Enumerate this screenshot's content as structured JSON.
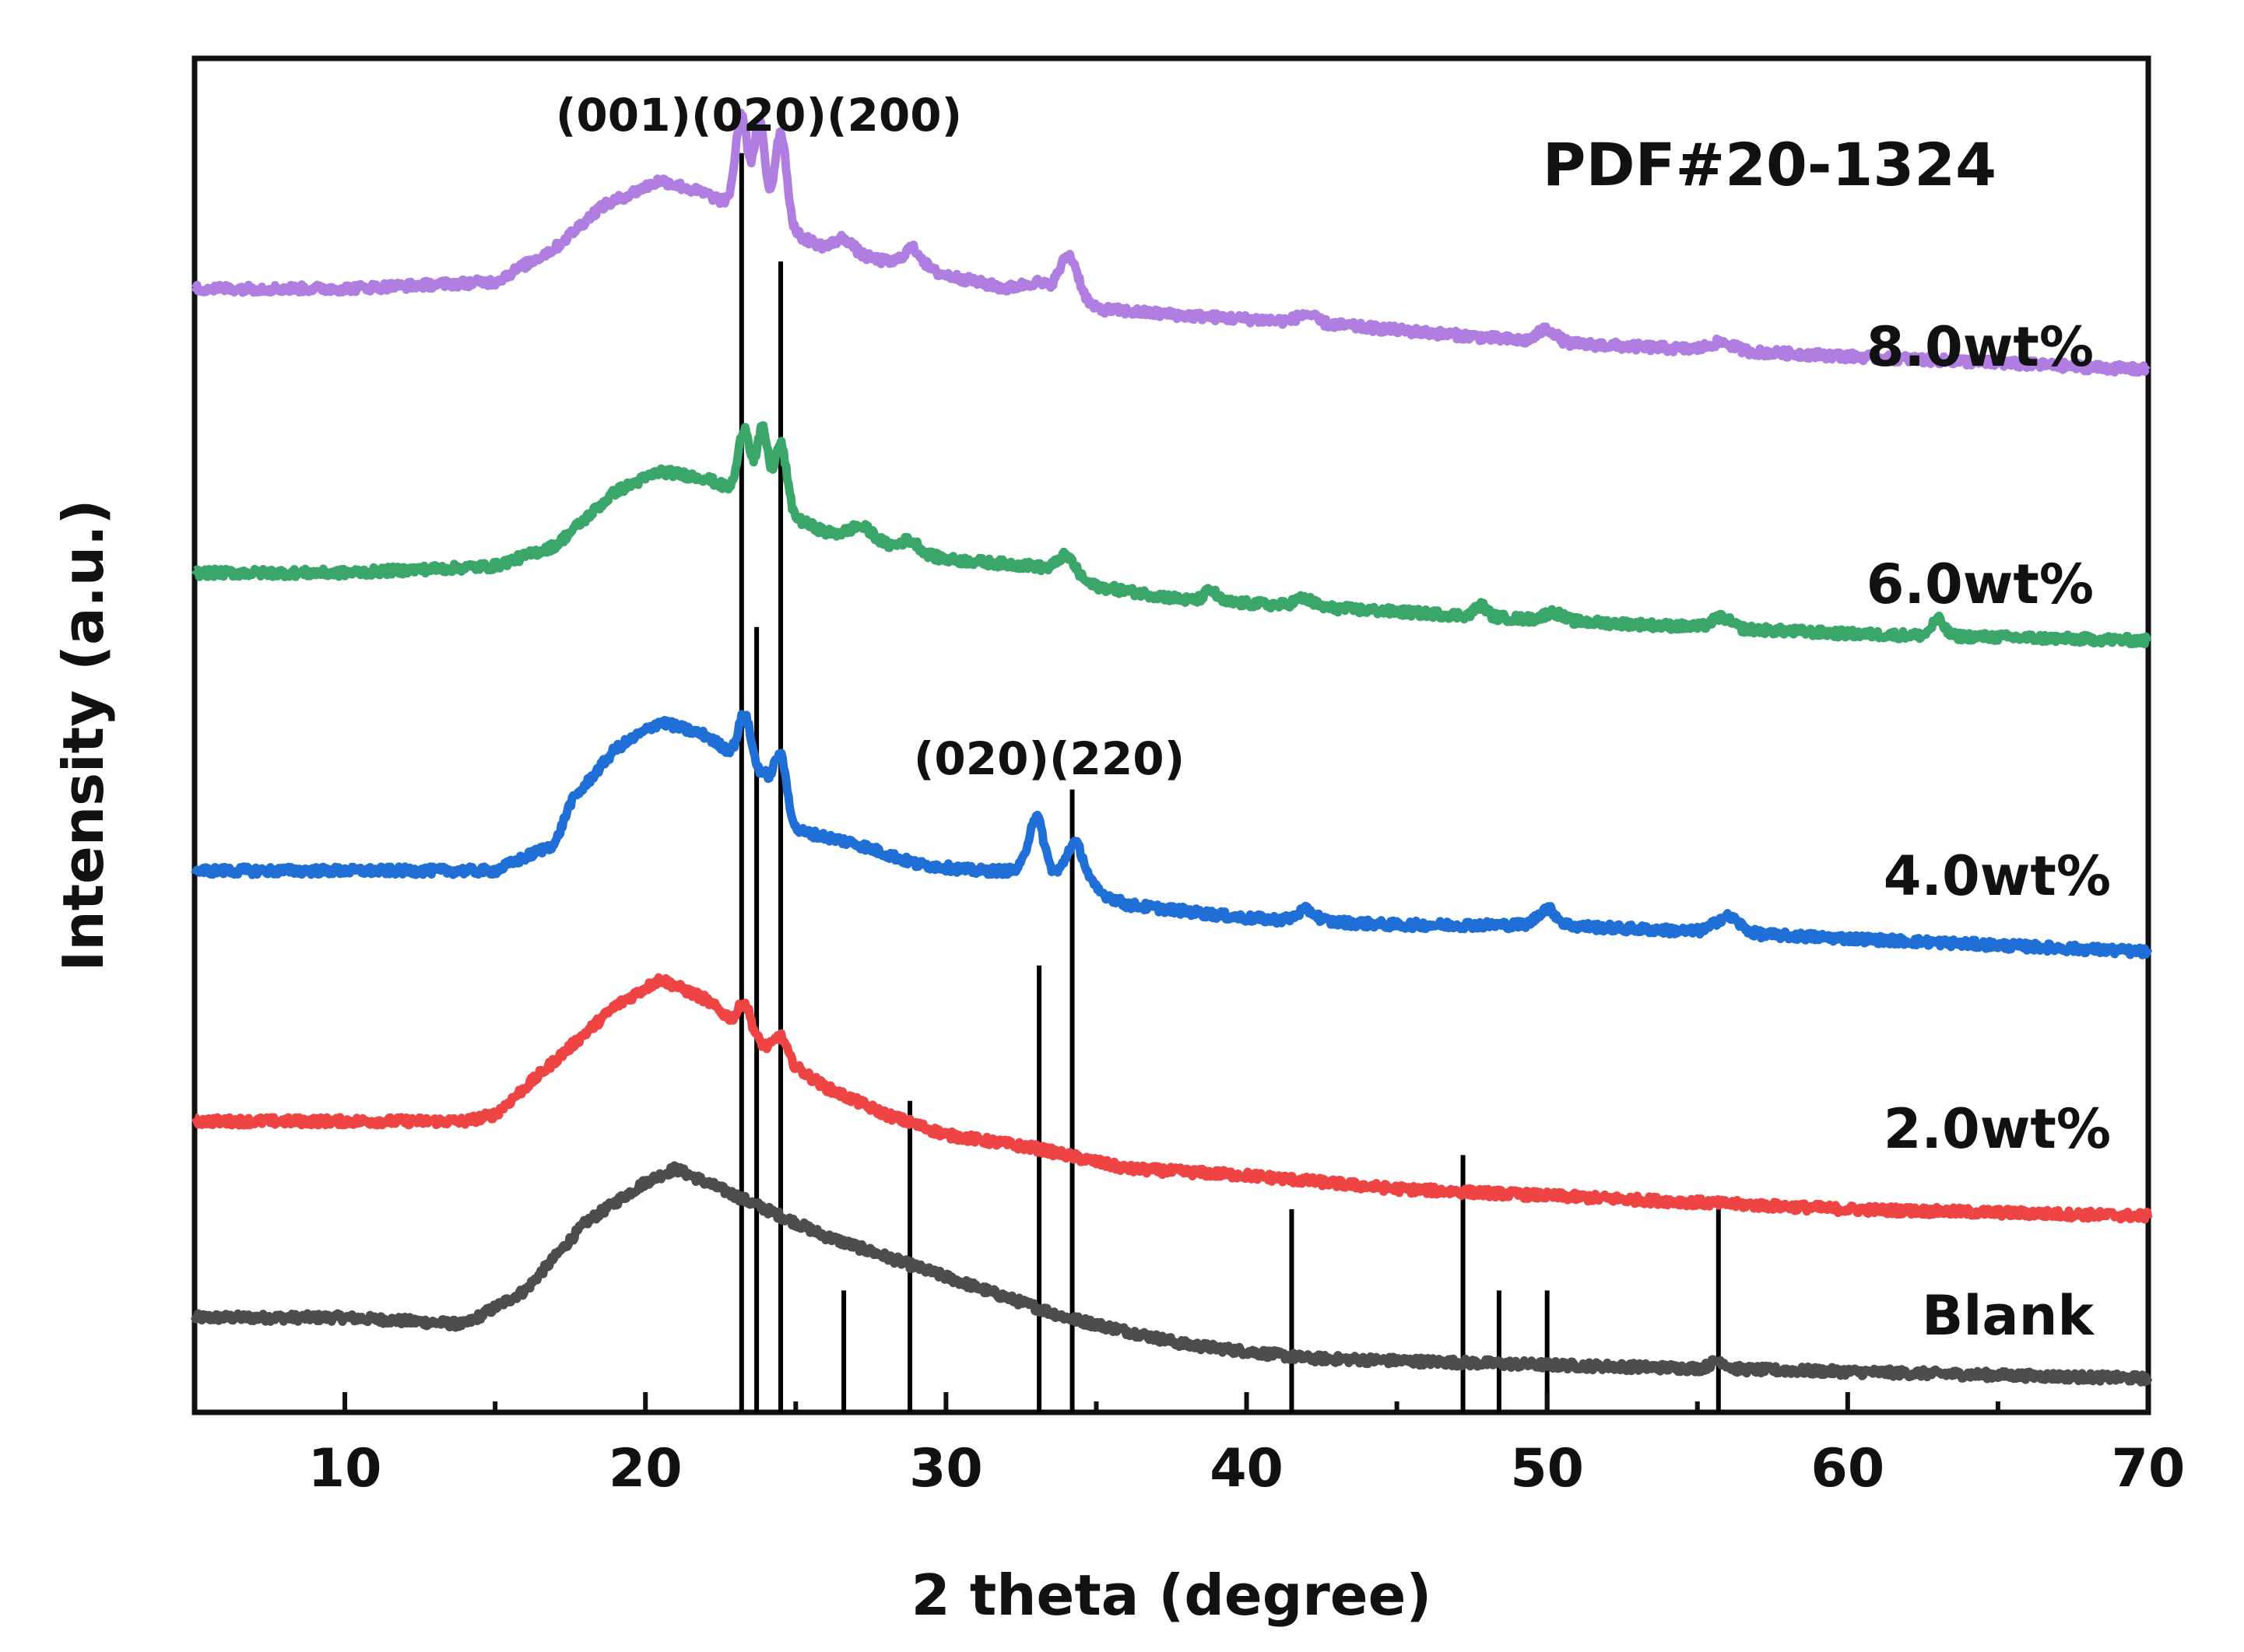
{
  "chart_data": {
    "type": "line",
    "title": "",
    "xlabel": "2 theta (degree)",
    "ylabel": "Intensity (a.u.)",
    "xlim": [
      5,
      70
    ],
    "xticks": [
      10,
      20,
      30,
      40,
      50,
      60,
      70
    ],
    "reference_label": "PDF#20-1324",
    "reference_peaks": [
      {
        "x": 23.2,
        "height": 0.93
      },
      {
        "x": 23.7,
        "height": 0.58
      },
      {
        "x": 24.5,
        "height": 0.85
      },
      {
        "x": 26.6,
        "height": 0.09
      },
      {
        "x": 28.8,
        "height": 0.23
      },
      {
        "x": 33.1,
        "height": 0.33
      },
      {
        "x": 34.2,
        "height": 0.46
      },
      {
        "x": 41.5,
        "height": 0.15
      },
      {
        "x": 47.2,
        "height": 0.19
      },
      {
        "x": 48.4,
        "height": 0.09
      },
      {
        "x": 50.0,
        "height": 0.09
      },
      {
        "x": 55.7,
        "height": 0.15
      }
    ],
    "annotations": [
      {
        "text": "(001)(020)(200)",
        "x": 23.8
      },
      {
        "text": "(020)(220)",
        "x": 33.6
      }
    ],
    "series": [
      {
        "name": "Blank",
        "color": "#4d4d4d",
        "points": [
          [
            5,
            0.07
          ],
          [
            10,
            0.07
          ],
          [
            14,
            0.065
          ],
          [
            16,
            0.09
          ],
          [
            18,
            0.14
          ],
          [
            20,
            0.17
          ],
          [
            21,
            0.18
          ],
          [
            22,
            0.17
          ],
          [
            24,
            0.15
          ],
          [
            26,
            0.13
          ],
          [
            28,
            0.115
          ],
          [
            30,
            0.1
          ],
          [
            34,
            0.07
          ],
          [
            38,
            0.05
          ],
          [
            42,
            0.04
          ],
          [
            50,
            0.035
          ],
          [
            60,
            0.03
          ],
          [
            70,
            0.025
          ]
        ],
        "peaks": [
          [
            55.7,
            0.006,
            0.25
          ]
        ]
      },
      {
        "name": "2.0wt%",
        "color": "#ef4444",
        "points": [
          [
            5,
            0.215
          ],
          [
            10,
            0.215
          ],
          [
            14,
            0.215
          ],
          [
            15,
            0.22
          ],
          [
            17,
            0.26
          ],
          [
            19,
            0.3
          ],
          [
            20.5,
            0.32
          ],
          [
            22,
            0.305
          ],
          [
            24,
            0.27
          ],
          [
            26,
            0.24
          ],
          [
            28,
            0.22
          ],
          [
            30,
            0.205
          ],
          [
            33,
            0.195
          ],
          [
            36,
            0.18
          ],
          [
            40,
            0.175
          ],
          [
            45,
            0.165
          ],
          [
            50,
            0.16
          ],
          [
            60,
            0.15
          ],
          [
            70,
            0.145
          ]
        ],
        "peaks": [
          [
            23.3,
            0.02,
            0.2
          ],
          [
            24.5,
            0.015,
            0.2
          ]
        ]
      },
      {
        "name": "4.0wt%",
        "color": "#1f6fd6",
        "points": [
          [
            5,
            0.4
          ],
          [
            10,
            0.4
          ],
          [
            15,
            0.4
          ],
          [
            17,
            0.42
          ],
          [
            17.5,
            0.45
          ],
          [
            19,
            0.49
          ],
          [
            20.5,
            0.51
          ],
          [
            22,
            0.5
          ],
          [
            24,
            0.47
          ],
          [
            25,
            0.43
          ],
          [
            27,
            0.42
          ],
          [
            29,
            0.405
          ],
          [
            31,
            0.4
          ],
          [
            33,
            0.4
          ],
          [
            35,
            0.385
          ],
          [
            36,
            0.375
          ],
          [
            40,
            0.365
          ],
          [
            45,
            0.36
          ],
          [
            50,
            0.36
          ],
          [
            55,
            0.355
          ],
          [
            60,
            0.35
          ],
          [
            70,
            0.34
          ]
        ],
        "peaks": [
          [
            23.3,
            0.035,
            0.2
          ],
          [
            24.5,
            0.035,
            0.2
          ],
          [
            33.0,
            0.04,
            0.25
          ],
          [
            34.3,
            0.03,
            0.3
          ],
          [
            42.0,
            0.008,
            0.3
          ],
          [
            50.0,
            0.012,
            0.3
          ],
          [
            56.0,
            0.012,
            0.4
          ]
        ]
      },
      {
        "name": "6.0wt%",
        "color": "#3aa66a",
        "points": [
          [
            5,
            0.62
          ],
          [
            10,
            0.62
          ],
          [
            15,
            0.625
          ],
          [
            17,
            0.64
          ],
          [
            19,
            0.68
          ],
          [
            20.5,
            0.695
          ],
          [
            22,
            0.69
          ],
          [
            24,
            0.67
          ],
          [
            26,
            0.65
          ],
          [
            28,
            0.64
          ],
          [
            30,
            0.63
          ],
          [
            33,
            0.625
          ],
          [
            35,
            0.61
          ],
          [
            38,
            0.6
          ],
          [
            42,
            0.595
          ],
          [
            50,
            0.585
          ],
          [
            60,
            0.575
          ],
          [
            70,
            0.57
          ]
        ],
        "peaks": [
          [
            23.3,
            0.05,
            0.2
          ],
          [
            23.9,
            0.055,
            0.18
          ],
          [
            24.5,
            0.05,
            0.2
          ],
          [
            27.2,
            0.01,
            0.4
          ],
          [
            28.8,
            0.008,
            0.3
          ],
          [
            34.0,
            0.015,
            0.3
          ],
          [
            38.8,
            0.008,
            0.2
          ],
          [
            41.9,
            0.006,
            0.3
          ],
          [
            47.8,
            0.008,
            0.2
          ],
          [
            50.2,
            0.006,
            0.3
          ],
          [
            55.8,
            0.008,
            0.3
          ],
          [
            63.0,
            0.012,
            0.2
          ]
        ]
      },
      {
        "name": "8.0wt%",
        "color": "#b07ee0",
        "points": [
          [
            5,
            0.83
          ],
          [
            10,
            0.83
          ],
          [
            15,
            0.835
          ],
          [
            17,
            0.86
          ],
          [
            18.5,
            0.89
          ],
          [
            20.5,
            0.91
          ],
          [
            22,
            0.9
          ],
          [
            24,
            0.88
          ],
          [
            26,
            0.86
          ],
          [
            28,
            0.85
          ],
          [
            30,
            0.84
          ],
          [
            32,
            0.83
          ],
          [
            33,
            0.835
          ],
          [
            35,
            0.815
          ],
          [
            38,
            0.81
          ],
          [
            42,
            0.805
          ],
          [
            50,
            0.79
          ],
          [
            60,
            0.78
          ],
          [
            70,
            0.77
          ]
        ],
        "peaks": [
          [
            23.2,
            0.07,
            0.2
          ],
          [
            23.8,
            0.07,
            0.18
          ],
          [
            24.5,
            0.07,
            0.2
          ],
          [
            26.6,
            0.01,
            0.3
          ],
          [
            28.9,
            0.014,
            0.3
          ],
          [
            34.1,
            0.03,
            0.3
          ],
          [
            42.0,
            0.006,
            0.3
          ],
          [
            50.0,
            0.01,
            0.3
          ],
          [
            55.8,
            0.006,
            0.4
          ]
        ]
      }
    ]
  }
}
